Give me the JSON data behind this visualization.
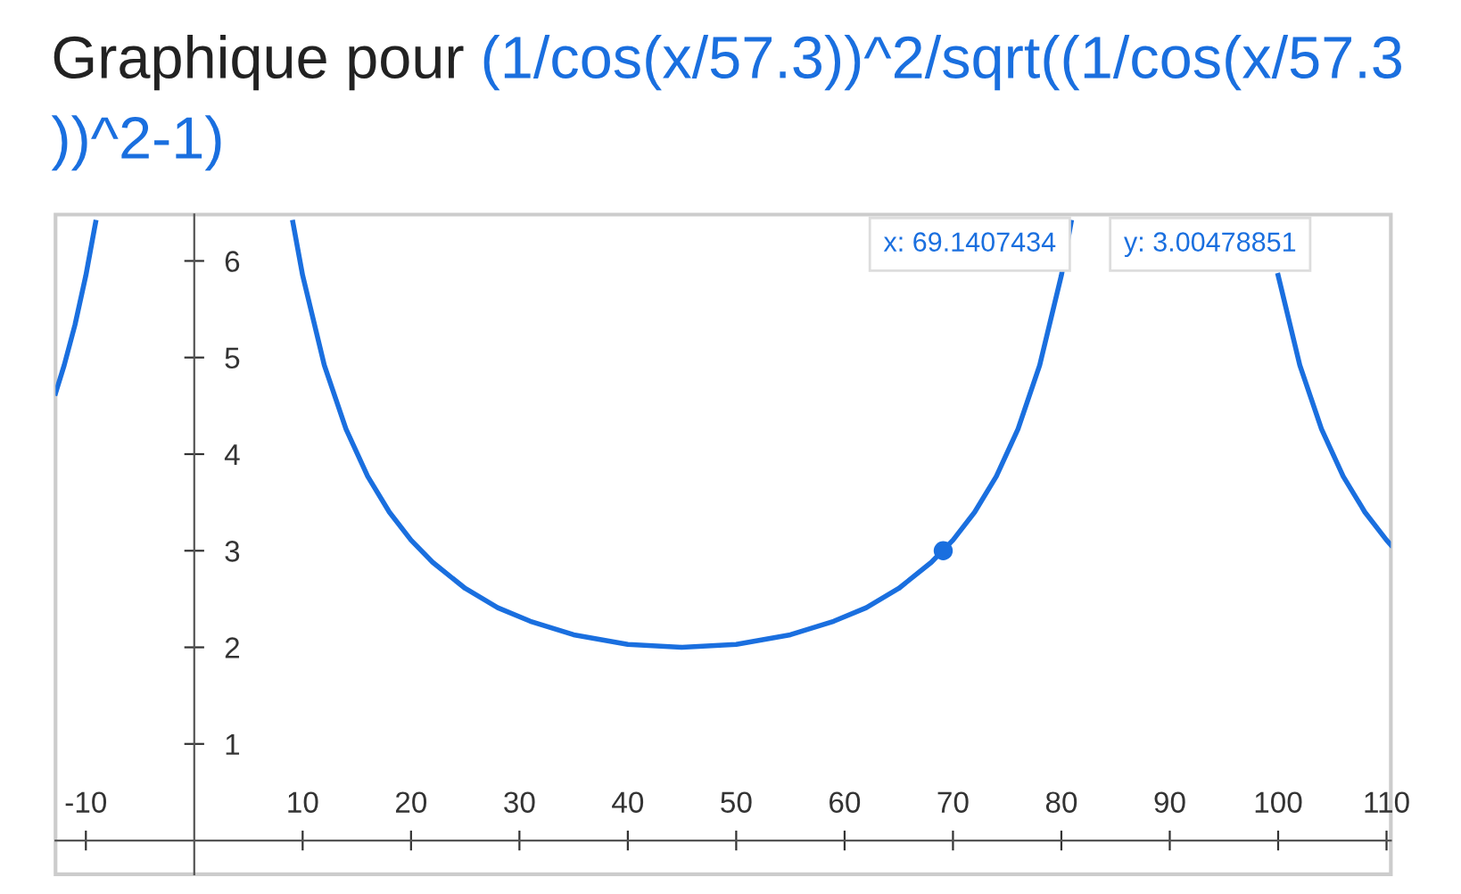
{
  "chart_data": {
    "type": "line",
    "title": "Graphique pour",
    "subtitle": "(1/cos(x/57.3))^2/sqrt((1/cos(x/57.3))^2-1)",
    "series": [
      {
        "color": "#1a6fdf",
        "x": [
          -12.8,
          -12,
          -11,
          -10,
          -9.1,
          0,
          9.1,
          10,
          12,
          14,
          16,
          18,
          20,
          22,
          25,
          28,
          31,
          35,
          40,
          45,
          50,
          55,
          59,
          62,
          65,
          68,
          70,
          72,
          74,
          76,
          78,
          80,
          80.9,
          90,
          100,
          102,
          104,
          106,
          108,
          110,
          110.4
        ],
        "values": [
          4.63,
          4.92,
          5.34,
          5.85,
          6.4,
          null,
          6.4,
          5.85,
          4.92,
          4.26,
          3.77,
          3.4,
          3.11,
          2.88,
          2.61,
          2.41,
          2.27,
          2.13,
          2.03,
          2.0,
          2.03,
          2.13,
          2.27,
          2.41,
          2.61,
          2.88,
          3.11,
          3.4,
          3.77,
          4.26,
          4.92,
          5.85,
          6.4,
          null,
          5.85,
          4.92,
          4.26,
          3.77,
          3.4,
          3.11,
          3.06
        ]
      },
      {
        "type": "scatter",
        "color": "#1a6fdf",
        "marker": "circle",
        "x": [
          69.1
        ],
        "values": [
          3.0
        ]
      }
    ],
    "annotations": [
      "x: 69.1407434",
      "y: 3.00478851"
    ],
    "xlim": [
      -12.8,
      110.4
    ],
    "ylim": [
      -0.35,
      6.48
    ],
    "xticks": [
      -10,
      10,
      20,
      30,
      40,
      50,
      60,
      70,
      80,
      90,
      100,
      110
    ],
    "yticks": [
      1,
      2,
      3,
      4,
      5,
      6
    ],
    "grid": false,
    "legend": false
  }
}
